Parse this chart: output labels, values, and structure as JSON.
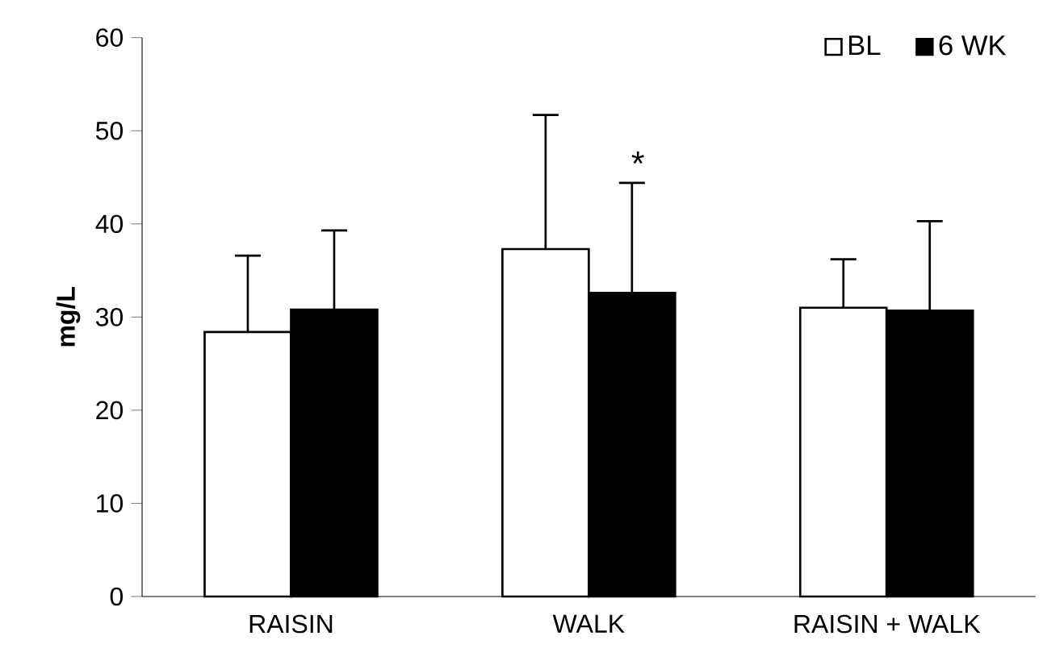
{
  "chart_data": {
    "type": "bar",
    "ylabel": "mg/L",
    "categories": [
      "RAISIN",
      "WALK",
      "RAISIN + WALK"
    ],
    "series": [
      {
        "name": "BL",
        "color": "#ffffff",
        "values": [
          28.4,
          37.3,
          31.0
        ],
        "errors": [
          [
            28.4,
            36.6
          ],
          [
            37.3,
            51.7
          ],
          [
            31.0,
            36.2
          ]
        ]
      },
      {
        "name": "6 WK",
        "color": "#000000",
        "values": [
          30.8,
          32.6,
          30.7
        ],
        "errors": [
          [
            30.8,
            39.3
          ],
          [
            32.6,
            44.4
          ],
          [
            30.7,
            40.3
          ]
        ]
      }
    ],
    "ylim": [
      0,
      60
    ],
    "yticks": [
      0,
      10,
      20,
      30,
      40,
      50,
      60
    ],
    "legend": "top right",
    "annotations": [
      "*"
    ]
  }
}
